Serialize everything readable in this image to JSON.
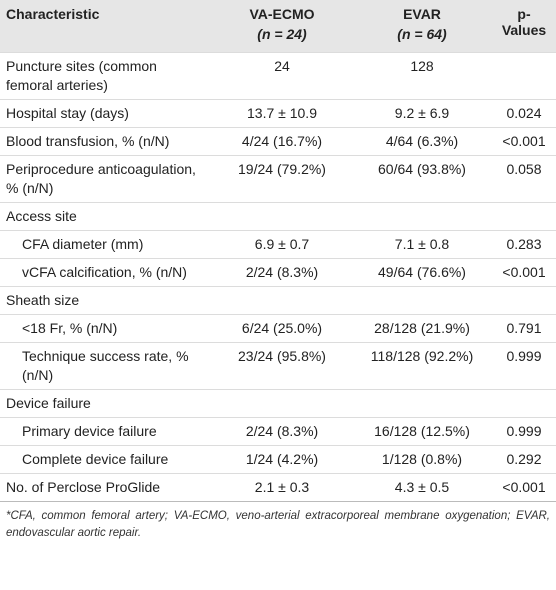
{
  "table": {
    "header": [
      "Characteristic",
      "VA-ECMO",
      "EVAR",
      "p-Values"
    ],
    "subheader": [
      "(n = 24)",
      "(n = 64)"
    ],
    "body": [
      {
        "cells": [
          "Puncture sites (common femoral arteries)",
          "24",
          "128",
          ""
        ]
      },
      {
        "cells": [
          "Hospital stay (days)",
          "13.7 ± 10.9",
          "9.2 ± 6.9",
          "0.024"
        ]
      },
      {
        "cells": [
          "Blood transfusion, % (n/N)",
          "4/24 (16.7%)",
          "4/64 (6.3%)",
          "<0.001"
        ]
      },
      {
        "cells": [
          "Periprocedure anticoagulation, % (n/N)",
          "19/24 (79.2%)",
          "60/64 (93.8%)",
          "0.058"
        ]
      },
      {
        "section": "Access site",
        "rows": [
          [
            "CFA diameter (mm)",
            "6.9 ± 0.7",
            "7.1 ± 0.8",
            "0.283"
          ],
          [
            "vCFA calcification, % (n/N)",
            "2/24 (8.3%)",
            "49/64 (76.6%)",
            "<0.001"
          ]
        ]
      },
      {
        "section": "Sheath size",
        "rows": [
          [
            "<18 Fr, % (n/N)",
            "6/24 (25.0%)",
            "28/128 (21.9%)",
            "0.791"
          ],
          [
            "Technique success rate, % (n/N)",
            "23/24 (95.8%)",
            "118/128 (92.2%)",
            "0.999"
          ]
        ]
      },
      {
        "section": "Device failure",
        "rows": [
          [
            "Primary device failure",
            "2/24 (8.3%)",
            "16/128 (12.5%)",
            "0.999"
          ],
          [
            "Complete device failure",
            "1/24 (4.2%)",
            "1/128 (0.8%)",
            "0.292"
          ]
        ]
      },
      {
        "cells": [
          "No. of Perclose ProGlide",
          "2.1 ± 0.3",
          "4.3 ± 0.5",
          "<0.001"
        ]
      }
    ],
    "footnote": "*CFA, common femoral artery; VA-ECMO, veno-arterial extracorporeal membrane oxygenation; EVAR, endovascular aortic repair."
  }
}
